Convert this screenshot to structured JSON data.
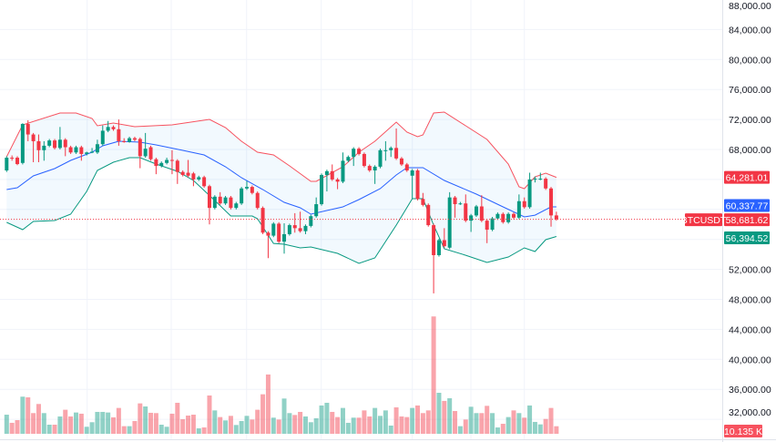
{
  "chart_data": {
    "type": "candlestick",
    "symbol": "BTCUSDT",
    "colors": {
      "up": "#089981",
      "down": "#f23645",
      "bb_upper": "#f7525f",
      "bb_basis": "#2962ff",
      "bb_lower": "#089981",
      "bb_fill": "#2196f3",
      "last_price": "#f23645"
    },
    "price_axis": {
      "ticks": [
        "88,000.00",
        "84,000.00",
        "80,000.00",
        "76,000.00",
        "72,000.00",
        "68,000.00",
        "52,000.00",
        "48,000.00",
        "44,000.00",
        "40,000.00",
        "36,000.00",
        "32,000.00"
      ],
      "tick_values": [
        88000,
        84000,
        80000,
        76000,
        72000,
        68000,
        52000,
        48000,
        44000,
        40000,
        36000,
        32000
      ],
      "ylim": [
        31000,
        88000
      ]
    },
    "labels": {
      "bb_upper": {
        "text": "64,281.01",
        "value": 64281.01
      },
      "bb_basis": {
        "text": "60,337.77",
        "value": 60337.77
      },
      "last_price": {
        "text": "58,681.62",
        "value": 58681.62
      },
      "bb_lower": {
        "text": "56,394.52",
        "value": 56394.52
      },
      "volume": {
        "text": "10.135 K",
        "value": 10.135
      }
    },
    "ohlc": [
      [
        65200,
        67100,
        65000,
        66900
      ],
      [
        66900,
        67200,
        66500,
        66800
      ],
      [
        66900,
        67100,
        65900,
        66050
      ],
      [
        66200,
        71500,
        66000,
        71400
      ],
      [
        71400,
        71900,
        69100,
        70000
      ],
      [
        70000,
        70200,
        66300,
        69100
      ],
      [
        69100,
        70000,
        66300,
        67900
      ],
      [
        67900,
        69100,
        66500,
        68500
      ],
      [
        68500,
        69400,
        68300,
        69200
      ],
      [
        69200,
        69400,
        68000,
        68200
      ],
      [
        68200,
        71000,
        68000,
        69300
      ],
      [
        69300,
        69500,
        67100,
        68300
      ],
      [
        68300,
        68500,
        67400,
        67600
      ],
      [
        67600,
        68500,
        67400,
        68300
      ],
      [
        68300,
        68500,
        66500,
        67400
      ],
      [
        67400,
        67700,
        67200,
        67600
      ],
      [
        67600,
        68200,
        67500,
        67700
      ],
      [
        67600,
        69300,
        67400,
        68700
      ],
      [
        68700,
        71200,
        68500,
        70500
      ],
      [
        70500,
        71800,
        70300,
        71000
      ],
      [
        71000,
        71200,
        70500,
        70700
      ],
      [
        70700,
        72000,
        68500,
        69100
      ],
      [
        69100,
        69500,
        68900,
        69000
      ],
      [
        69000,
        69700,
        68900,
        69500
      ],
      [
        69500,
        69700,
        69100,
        69300
      ],
      [
        69400,
        69600,
        65500,
        67100
      ],
      [
        67100,
        70200,
        66900,
        68100
      ],
      [
        68300,
        68500,
        66500,
        66700
      ],
      [
        66700,
        66900,
        64700,
        65800
      ],
      [
        65800,
        66400,
        65600,
        66200
      ],
      [
        66200,
        66900,
        66000,
        66600
      ],
      [
        66600,
        67900,
        64700,
        66500
      ],
      [
        66500,
        66700,
        63400,
        65000
      ],
      [
        65000,
        65200,
        64400,
        64600
      ],
      [
        64900,
        66600,
        64300,
        64500
      ],
      [
        64800,
        65000,
        63100,
        64000
      ],
      [
        64000,
        64500,
        63800,
        64300
      ],
      [
        64300,
        64500,
        62900,
        63100
      ],
      [
        63100,
        63300,
        58000,
        60200
      ],
      [
        60200,
        61900,
        60000,
        61700
      ],
      [
        61700,
        62300,
        60600,
        60800
      ],
      [
        60800,
        61800,
        60600,
        61600
      ],
      [
        61600,
        61800,
        60000,
        60200
      ],
      [
        60200,
        61000,
        60000,
        60800
      ],
      [
        60800,
        63000,
        60600,
        62800
      ],
      [
        62800,
        63800,
        62600,
        63000
      ],
      [
        63000,
        63200,
        62000,
        62200
      ],
      [
        62200,
        62400,
        60000,
        60200
      ],
      [
        60200,
        60400,
        56700,
        56900
      ],
      [
        56900,
        57100,
        53500,
        56500
      ],
      [
        56500,
        58300,
        56300,
        58100
      ],
      [
        58100,
        58300,
        55500,
        55700
      ],
      [
        55700,
        58150,
        54100,
        56700
      ],
      [
        56700,
        58100,
        56500,
        57900
      ],
      [
        57900,
        59500,
        56900,
        57500
      ],
      [
        57500,
        59700,
        56900,
        57100
      ],
      [
        57100,
        58000,
        56700,
        57800
      ],
      [
        57800,
        59300,
        57600,
        59100
      ],
      [
        59100,
        61600,
        58900,
        60700
      ],
      [
        60700,
        64800,
        60500,
        64600
      ],
      [
        64600,
        65300,
        62400,
        65100
      ],
      [
        65100,
        66000,
        63800,
        64000
      ],
      [
        64000,
        64200,
        62700,
        63700
      ],
      [
        63700,
        67600,
        63500,
        66500
      ],
      [
        66500,
        67200,
        66300,
        67000
      ],
      [
        67000,
        68300,
        65800,
        68100
      ],
      [
        68100,
        68300,
        67200,
        67400
      ],
      [
        67400,
        67600,
        65600,
        65800
      ],
      [
        65800,
        66000,
        65000,
        65200
      ],
      [
        65200,
        65900,
        63400,
        65700
      ],
      [
        65700,
        68100,
        65500,
        67900
      ],
      [
        67900,
        69100,
        66500,
        67900
      ],
      [
        67900,
        68400,
        67000,
        68200
      ],
      [
        68200,
        70800,
        66600,
        66800
      ],
      [
        66800,
        67000,
        65800,
        66000
      ],
      [
        66000,
        66200,
        65000,
        65200
      ],
      [
        64500,
        65400,
        61400,
        65200
      ],
      [
        65200,
        65400,
        61200,
        61400
      ],
      [
        61400,
        62200,
        60400,
        60600
      ],
      [
        60600,
        60800,
        57700,
        57900
      ],
      [
        57900,
        58100,
        48800,
        53900
      ],
      [
        53900,
        56100,
        53700,
        55900
      ],
      [
        55900,
        57500,
        54900,
        55100
      ],
      [
        54900,
        62300,
        54700,
        61600
      ],
      [
        61600,
        61800,
        58900,
        60700
      ],
      [
        60700,
        61000,
        60600,
        60800
      ],
      [
        60800,
        62000,
        58300,
        58500
      ],
      [
        58500,
        59400,
        57000,
        59200
      ],
      [
        59200,
        60600,
        59000,
        60400
      ],
      [
        60400,
        61900,
        58300,
        58500
      ],
      [
        58500,
        58700,
        55500,
        57300
      ],
      [
        57300,
        59000,
        57100,
        58800
      ],
      [
        58800,
        59600,
        58600,
        59400
      ],
      [
        59400,
        59600,
        58100,
        58300
      ],
      [
        58300,
        59600,
        58100,
        59400
      ],
      [
        59400,
        59600,
        58700,
        58900
      ],
      [
        58900,
        62000,
        58700,
        61100
      ],
      [
        61100,
        61600,
        60100,
        60300
      ],
      [
        60300,
        64900,
        60100,
        64000
      ],
      [
        64000,
        64400,
        63600,
        64100
      ],
      [
        64000,
        64900,
        63900,
        64100
      ],
      [
        64100,
        64300,
        62600,
        62800
      ],
      [
        62800,
        63000,
        57700,
        59200
      ],
      [
        59200,
        59700,
        58500,
        58681.62
      ]
    ],
    "volume_k": [
      25.6,
      14.7,
      18.3,
      49.7,
      48.8,
      27.7,
      39.9,
      27.7,
      12.2,
      12.2,
      23.2,
      32.2,
      23.2,
      28.5,
      26.9,
      9.4,
      15.5,
      29.3,
      29.3,
      28.5,
      22.0,
      34.6,
      10.2,
      10.2,
      17.1,
      40.7,
      36.6,
      28.1,
      27.7,
      12.2,
      9.4,
      26.9,
      41.5,
      19.5,
      24.4,
      25.6,
      7.3,
      8.5,
      51.3,
      31.3,
      22.4,
      17.9,
      24.0,
      11.8,
      17.1,
      24.0,
      19.1,
      32.2,
      52.9,
      79.4,
      21.6,
      19.1,
      47.2,
      27.7,
      25.2,
      29.3,
      23.2,
      15.5,
      20.8,
      37.9,
      41.5,
      29.3,
      22.4,
      34.6,
      14.7,
      21.6,
      21.6,
      31.3,
      23.2,
      34.6,
      24.0,
      31.3,
      11.0,
      35.4,
      23.2,
      22.4,
      34.6,
      37.9,
      27.7,
      31.3,
      157.1,
      54.9,
      44.0,
      47.6,
      30.5,
      10.2,
      19.1,
      36.2,
      27.7,
      27.7,
      37.4,
      27.7,
      8.5,
      13.4,
      22.4,
      31.3,
      27.7,
      21.6,
      37.9,
      15.9,
      12.6,
      19.9,
      34.6,
      10.135
    ],
    "bollinger": {
      "upper": [
        [
          0,
          67030
        ],
        [
          3,
          71280
        ],
        [
          10,
          72860
        ],
        [
          13,
          72860
        ],
        [
          16,
          72130
        ],
        [
          17,
          71160
        ],
        [
          20,
          71530
        ],
        [
          24,
          71040
        ],
        [
          31,
          71280
        ],
        [
          38,
          72010
        ],
        [
          41,
          70920
        ],
        [
          44,
          69090
        ],
        [
          47,
          67640
        ],
        [
          50,
          67270
        ],
        [
          53,
          65810
        ],
        [
          57,
          63740
        ],
        [
          58,
          63740
        ],
        [
          63,
          65690
        ],
        [
          66,
          67640
        ],
        [
          69,
          69090
        ],
        [
          73,
          71650
        ],
        [
          75,
          70310
        ],
        [
          77,
          69700
        ],
        [
          78,
          69950
        ],
        [
          80,
          72860
        ],
        [
          82,
          72990
        ],
        [
          86,
          71160
        ],
        [
          90,
          69340
        ],
        [
          94,
          66050
        ],
        [
          96,
          63010
        ],
        [
          97,
          62770
        ],
        [
          99,
          64350
        ],
        [
          101,
          64840
        ],
        [
          103,
          64281.01
        ]
      ],
      "basis": [
        [
          0,
          62650
        ],
        [
          2,
          62890
        ],
        [
          5,
          64470
        ],
        [
          9,
          65450
        ],
        [
          12,
          66540
        ],
        [
          16,
          67640
        ],
        [
          18,
          68490
        ],
        [
          21,
          69090
        ],
        [
          25,
          68970
        ],
        [
          28,
          68610
        ],
        [
          33,
          67880
        ],
        [
          37,
          67270
        ],
        [
          41,
          65690
        ],
        [
          44,
          64230
        ],
        [
          48,
          62650
        ],
        [
          52,
          60950
        ],
        [
          55,
          60220
        ],
        [
          57,
          59370
        ],
        [
          63,
          60340
        ],
        [
          66,
          61310
        ],
        [
          70,
          62770
        ],
        [
          73,
          64600
        ],
        [
          75,
          65570
        ],
        [
          78,
          65570
        ],
        [
          82,
          63870
        ],
        [
          88,
          62040
        ],
        [
          93,
          60340
        ],
        [
          97,
          59000
        ],
        [
          99,
          59240
        ],
        [
          102,
          60340
        ],
        [
          103,
          60337.77
        ]
      ],
      "lower": [
        [
          0,
          58270
        ],
        [
          3,
          57300
        ],
        [
          5,
          58390
        ],
        [
          9,
          58520
        ],
        [
          12,
          59370
        ],
        [
          15,
          62410
        ],
        [
          17,
          65200
        ],
        [
          20,
          66300
        ],
        [
          23,
          66910
        ],
        [
          25,
          66910
        ],
        [
          28,
          66050
        ],
        [
          32,
          65080
        ],
        [
          35,
          63870
        ],
        [
          39,
          61190
        ],
        [
          42,
          59120
        ],
        [
          46,
          59120
        ],
        [
          47,
          58760
        ],
        [
          50,
          55470
        ],
        [
          52,
          55350
        ],
        [
          55,
          54870
        ],
        [
          57,
          54990
        ],
        [
          62,
          54140
        ],
        [
          66,
          52800
        ],
        [
          69,
          53530
        ],
        [
          73,
          57910
        ],
        [
          76,
          61430
        ],
        [
          78,
          61430
        ],
        [
          80,
          57910
        ],
        [
          82,
          54750
        ],
        [
          86,
          53890
        ],
        [
          90,
          52920
        ],
        [
          94,
          53650
        ],
        [
          97,
          54870
        ],
        [
          99,
          54380
        ],
        [
          101,
          55960
        ],
        [
          103,
          56394.52
        ]
      ]
    }
  }
}
